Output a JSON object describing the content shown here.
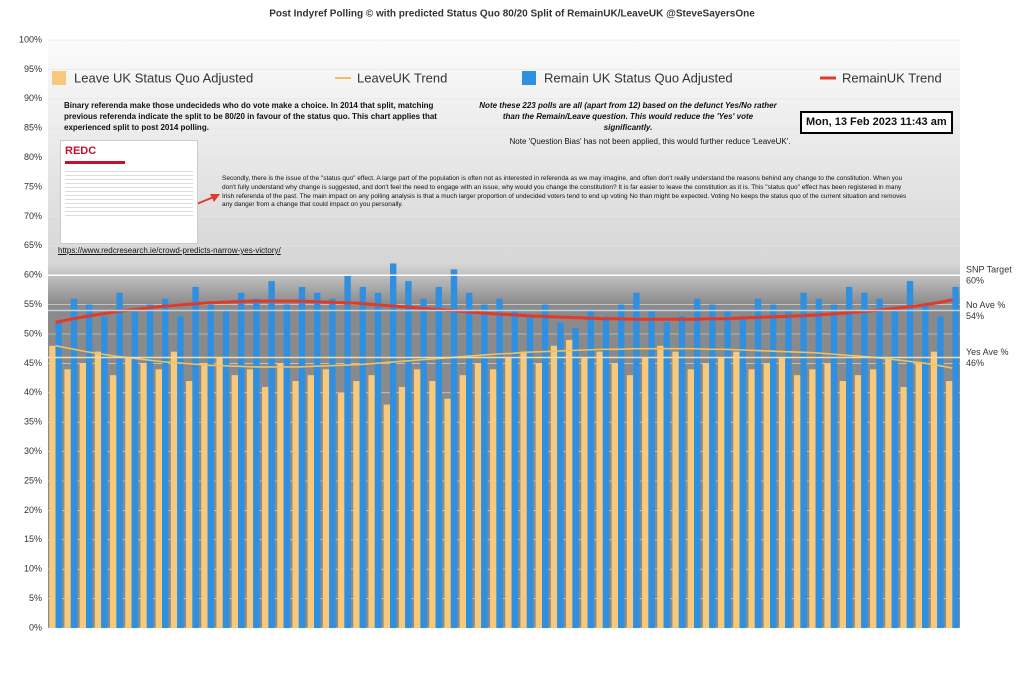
{
  "chart_data": {
    "type": "bar",
    "title": "Post Indyref Polling © with predicted Status Quo 80/20 Split of RemainUK/LeaveUK @SteveSayersOne",
    "categories": [
      null,
      null,
      null,
      null,
      null,
      null,
      null,
      null,
      null,
      null,
      null,
      null,
      null,
      null,
      null,
      null,
      null,
      null,
      null,
      null,
      null,
      null,
      null,
      null,
      null,
      null,
      null,
      null,
      null,
      null,
      null,
      null,
      null,
      null,
      null,
      null,
      null,
      null,
      null,
      null,
      null,
      null,
      null,
      null,
      null,
      null,
      null,
      null,
      null,
      null,
      null,
      null,
      null,
      null,
      null,
      null,
      null,
      null,
      null,
      null
    ],
    "series": [
      {
        "name": "Leave UK Status Quo Adjusted",
        "color": "#f6c97c",
        "values": [
          48,
          44,
          45,
          47,
          43,
          46,
          45,
          44,
          47,
          42,
          45,
          46,
          43,
          44,
          41,
          45,
          42,
          43,
          44,
          40,
          42,
          43,
          38,
          41,
          44,
          42,
          39,
          43,
          45,
          44,
          46,
          47,
          45,
          48,
          49,
          46,
          47,
          45,
          43,
          46,
          48,
          47,
          44,
          45,
          46,
          47,
          44,
          45,
          46,
          43,
          44,
          45,
          42,
          43,
          44,
          46,
          41,
          45,
          47,
          42
        ]
      },
      {
        "name": "LeaveUK Trend",
        "color": "#f0c060",
        "line": true,
        "values": [
          48.0,
          47.5,
          47.0,
          46.6,
          46.2,
          45.9,
          45.6,
          45.3,
          45.1,
          44.9,
          44.7,
          44.6,
          44.5,
          44.4,
          44.4,
          44.4,
          44.4,
          44.5,
          44.6,
          44.7,
          44.8,
          45.0,
          45.2,
          45.4,
          45.6,
          45.8,
          46.0,
          46.2,
          46.4,
          46.6,
          46.7,
          46.9,
          47.0,
          47.1,
          47.2,
          47.3,
          47.4,
          47.4,
          47.5,
          47.5,
          47.5,
          47.5,
          47.5,
          47.4,
          47.4,
          47.3,
          47.2,
          47.1,
          47.0,
          46.9,
          46.8,
          46.6,
          46.4,
          46.2,
          46.0,
          45.7,
          45.4,
          45.1,
          44.7,
          44.2
        ]
      },
      {
        "name": "Remain UK Status Quo Adjusted",
        "color": "#2f8fe0",
        "values": [
          52,
          56,
          55,
          53,
          57,
          54,
          55,
          56,
          53,
          58,
          55,
          54,
          57,
          56,
          59,
          55,
          58,
          57,
          56,
          60,
          58,
          57,
          62,
          59,
          56,
          58,
          61,
          57,
          55,
          56,
          54,
          53,
          55,
          52,
          51,
          54,
          53,
          55,
          57,
          54,
          52,
          53,
          56,
          55,
          54,
          53,
          56,
          55,
          54,
          57,
          56,
          55,
          58,
          57,
          56,
          54,
          59,
          55,
          53,
          58
        ]
      },
      {
        "name": "RemainUK Trend",
        "color": "#e03a2a",
        "line": true,
        "values": [
          52.0,
          52.5,
          53.0,
          53.4,
          53.8,
          54.1,
          54.4,
          54.7,
          54.9,
          55.1,
          55.3,
          55.4,
          55.5,
          55.6,
          55.6,
          55.6,
          55.6,
          55.5,
          55.4,
          55.3,
          55.2,
          55.0,
          54.8,
          54.6,
          54.4,
          54.2,
          54.0,
          53.8,
          53.6,
          53.4,
          53.3,
          53.1,
          53.0,
          52.9,
          52.8,
          52.7,
          52.6,
          52.6,
          52.5,
          52.5,
          52.5,
          52.5,
          52.5,
          52.6,
          52.6,
          52.7,
          52.8,
          52.9,
          53.0,
          53.1,
          53.2,
          53.4,
          53.6,
          53.8,
          54.0,
          54.3,
          54.6,
          54.9,
          55.3,
          55.8
        ]
      }
    ],
    "ylim": [
      0,
      100
    ],
    "yticks": [
      {
        "value": 0,
        "label": "0%"
      },
      {
        "value": 5,
        "label": "5%"
      },
      {
        "value": 10,
        "label": "10%"
      },
      {
        "value": 15,
        "label": "15%"
      },
      {
        "value": 20,
        "label": "20%"
      },
      {
        "value": 25,
        "label": "25%"
      },
      {
        "value": 30,
        "label": "30%"
      },
      {
        "value": 35,
        "label": "35%"
      },
      {
        "value": 40,
        "label": "40%"
      },
      {
        "value": 45,
        "label": "45%"
      },
      {
        "value": 50,
        "label": "50%"
      },
      {
        "value": 55,
        "label": "55%"
      },
      {
        "value": 60,
        "label": "60%"
      },
      {
        "value": 65,
        "label": "65%"
      },
      {
        "value": 70,
        "label": "70%"
      },
      {
        "value": 75,
        "label": "75%"
      },
      {
        "value": 80,
        "label": "80%"
      },
      {
        "value": 85,
        "label": "85%"
      },
      {
        "value": 90,
        "label": "90%"
      },
      {
        "value": 95,
        "label": "95%"
      },
      {
        "value": 100,
        "label": "100%"
      }
    ],
    "grid": true,
    "reference_lines": [
      {
        "value": 60,
        "label": "SNP Target",
        "value_label": "60%",
        "color": "#ffffff"
      },
      {
        "value": 54,
        "label": "No Ave %",
        "value_label": "54%",
        "color": "#bcd0e0"
      },
      {
        "value": 46,
        "label": "Yes Ave %",
        "value_label": "46%",
        "color": "#e8dcb0"
      }
    ],
    "annotations": {
      "left_note": "Binary referenda make those undecideds who do vote make a choice. In 2014 that split, matching previous referenda indicate the split to be 80/20 in favour of the status quo. This chart applies that experienced split to post 2014 polling.",
      "right_note": "Note these 223 polls are all (apart from 12) based on the defunct Yes/No rather than the Remain/Leave question. This would reduce the 'Yes' vote significantly.",
      "date_box": "Mon, 13 Feb 2023 11:43 am",
      "bias_note": "Note 'Question Bias' has not been applied, this would further reduce 'LeaveUK'.",
      "status_quo_note": "Secondly, there is the issue of the \"status quo\" effect.  A large part of the population is often not as interested in referenda as we may imagine, and often don't really understand the reasons behind any change to the constitution.  When you don't fully understand why change is suggested, and don't feel the need to engage with an issue, why would you change the constitution?  It is far easier to leave the constitution as it is.  This \"status quo\" effect has been registered in many Irish referenda of the past.  The main impact on any polling analysis is that a much larger proportion of undecided voters tend to end up voting No than might be expected.  Voting No keeps the status quo of the current situation and removes any danger from a change that could impact on you personally.",
      "inset_logo": "REDC",
      "url": "https://www.redcresearch.ie/crowd-predicts-narrow-yes-victory/"
    }
  }
}
